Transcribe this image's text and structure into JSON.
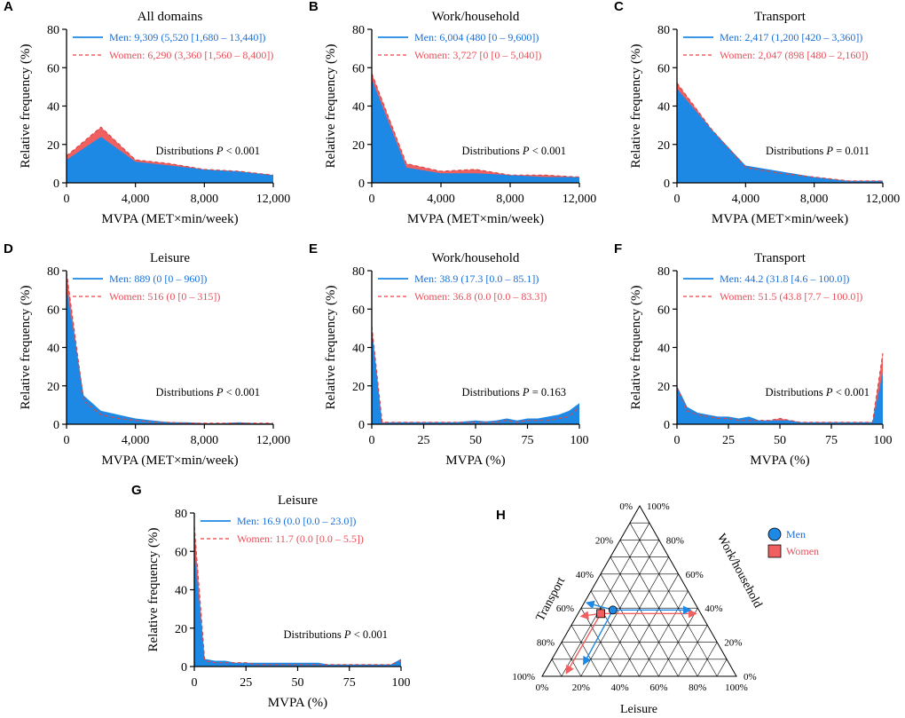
{
  "colors": {
    "men": "#1e88e5",
    "men_text": "#1a6fd9",
    "women": "#f06060",
    "women_text": "#e8505b"
  },
  "y_axis_label": "Relative frequency (%)",
  "chart_data": [
    {
      "letter": "A",
      "type": "area",
      "title": "All domains",
      "xlabel": "MVPA (MET×min/week)",
      "ylabel": "Relative frequency (%)",
      "xlim": [
        0,
        12000
      ],
      "ylim": [
        0,
        80
      ],
      "xticks": [
        0,
        4000,
        8000,
        12000
      ],
      "xtick_labels": [
        "0",
        "4,000",
        "8,000",
        "12,000"
      ],
      "yticks": [
        0,
        20,
        40,
        60,
        80
      ],
      "x": [
        0,
        2000,
        4000,
        6000,
        8000,
        10000,
        12000
      ],
      "series": [
        {
          "name": "Women",
          "values": [
            14,
            29,
            12,
            10,
            7,
            6,
            4
          ]
        },
        {
          "name": "Men",
          "values": [
            12,
            24,
            11,
            9,
            7,
            6,
            4
          ]
        }
      ],
      "legend": {
        "men": "Men: 9,309 (5,520 [1,680 – 13,440])",
        "women": "Women: 6,290 (3,360 [1,560 – 8,400])"
      },
      "annotation": {
        "prefix": "Distributions ",
        "p": "P",
        "suffix": " < 0.001"
      }
    },
    {
      "letter": "B",
      "type": "area",
      "title": "Work/household",
      "xlabel": "MVPA (MET×min/week)",
      "ylabel": "Relative frequency (%)",
      "xlim": [
        0,
        12000
      ],
      "ylim": [
        0,
        80
      ],
      "xticks": [
        0,
        4000,
        8000,
        12000
      ],
      "xtick_labels": [
        "0",
        "4,000",
        "8,000",
        "12,000"
      ],
      "yticks": [
        0,
        20,
        40,
        60,
        80
      ],
      "x": [
        0,
        2000,
        4000,
        6000,
        8000,
        10000,
        12000
      ],
      "series": [
        {
          "name": "Women",
          "values": [
            57,
            10,
            6,
            7,
            4,
            4,
            3
          ]
        },
        {
          "name": "Men",
          "values": [
            54,
            8,
            5,
            5,
            4,
            3,
            3
          ]
        }
      ],
      "legend": {
        "men": "Men: 6,004 (480 [0 – 9,600])",
        "women": "Women: 3,727 [0 [0 – 5,040])"
      },
      "annotation": {
        "prefix": "Distributions ",
        "p": "P",
        "suffix": " < 0.001"
      }
    },
    {
      "letter": "C",
      "type": "area",
      "title": "Transport",
      "xlabel": "MVPA (MET×min/week)",
      "ylabel": "Relative frequency (%)",
      "xlim": [
        0,
        12000
      ],
      "ylim": [
        0,
        80
      ],
      "xticks": [
        0,
        4000,
        8000,
        12000
      ],
      "xtick_labels": [
        "0",
        "4,000",
        "8,000",
        "12,000"
      ],
      "yticks": [
        0,
        20,
        40,
        60,
        80
      ],
      "x": [
        0,
        2000,
        4000,
        6000,
        8000,
        10000,
        12000
      ],
      "series": [
        {
          "name": "Women",
          "values": [
            52,
            28,
            8,
            5,
            3,
            1,
            1
          ]
        },
        {
          "name": "Men",
          "values": [
            49,
            28,
            9,
            6,
            3,
            1,
            1
          ]
        }
      ],
      "legend": {
        "men": "Men: 2,417 (1,200 [420 – 3,360])",
        "women": "Women: 2,047 (898 [480 – 2,160])"
      },
      "annotation": {
        "prefix": "Distributions ",
        "p": "P",
        "suffix": " = 0.011"
      }
    },
    {
      "letter": "D",
      "type": "area",
      "title": "Leisure",
      "xlabel": "MVPA (MET×min/week)",
      "ylabel": "Relative frequency (%)",
      "xlim": [
        0,
        12000
      ],
      "ylim": [
        0,
        80
      ],
      "xticks": [
        0,
        4000,
        8000,
        12000
      ],
      "xtick_labels": [
        "0",
        "4,000",
        "8,000",
        "12,000"
      ],
      "yticks": [
        0,
        20,
        40,
        60,
        80
      ],
      "x": [
        0,
        1000,
        2000,
        3000,
        4000,
        5000,
        6000,
        7000,
        8000,
        9000,
        10000,
        11000,
        12000
      ],
      "series": [
        {
          "name": "Women",
          "values": [
            79,
            12,
            5,
            3,
            2,
            1,
            1,
            0.5,
            0.5,
            0.5,
            0.5,
            0.5,
            0.5
          ]
        },
        {
          "name": "Men",
          "values": [
            71,
            15,
            7,
            5,
            3,
            2,
            1,
            1,
            0.5,
            0.5,
            1,
            0.5,
            0.5
          ]
        }
      ],
      "legend": {
        "men": "Men: 889 (0 [0 – 960])",
        "women": "Women: 516 (0 [0 – 315])"
      },
      "annotation": {
        "prefix": "Distributions ",
        "p": "P",
        "suffix": " < 0.001"
      }
    },
    {
      "letter": "E",
      "type": "area",
      "title": "Work/household",
      "xlabel": "MVPA (%)",
      "ylabel": "Relative frequency (%)",
      "xlim": [
        0,
        100
      ],
      "ylim": [
        0,
        80
      ],
      "xticks": [
        0,
        25,
        50,
        75,
        100
      ],
      "xtick_labels": [
        "0",
        "25",
        "50",
        "75",
        "100"
      ],
      "yticks": [
        0,
        20,
        40,
        60,
        80
      ],
      "x": [
        0,
        5,
        10,
        15,
        20,
        25,
        30,
        35,
        40,
        45,
        50,
        55,
        60,
        65,
        70,
        75,
        80,
        85,
        90,
        95,
        100
      ],
      "series": [
        {
          "name": "Women",
          "values": [
            51,
            1,
            1,
            1,
            1,
            1,
            1,
            1,
            1,
            1,
            1,
            1,
            1,
            2,
            1,
            2,
            2,
            2,
            3,
            4,
            9
          ]
        },
        {
          "name": "Men",
          "values": [
            50,
            0.5,
            1,
            1,
            1,
            1,
            1,
            1,
            1,
            1.5,
            2,
            1.5,
            2,
            3,
            2,
            3,
            3,
            4,
            5,
            7,
            11
          ]
        }
      ],
      "legend": {
        "men": "Men: 38.9 (17.3 [0.0 – 85.1])",
        "women": "Women: 36.8 (0.0 [0.0 – 83.3])"
      },
      "annotation": {
        "prefix": "Distributions ",
        "p": "P",
        "suffix": " = 0.163"
      }
    },
    {
      "letter": "F",
      "type": "area",
      "title": "Transport",
      "xlabel": "MVPA (%)",
      "ylabel": "Relative frequency (%)",
      "xlim": [
        0,
        100
      ],
      "ylim": [
        0,
        80
      ],
      "xticks": [
        0,
        25,
        50,
        75,
        100
      ],
      "xtick_labels": [
        "0",
        "25",
        "50",
        "75",
        "100"
      ],
      "yticks": [
        0,
        20,
        40,
        60,
        80
      ],
      "x": [
        0,
        5,
        10,
        15,
        20,
        25,
        30,
        35,
        40,
        45,
        50,
        55,
        60,
        65,
        70,
        75,
        80,
        85,
        90,
        95,
        100
      ],
      "series": [
        {
          "name": "Women",
          "values": [
            19,
            7,
            5,
            4,
            3,
            3,
            2,
            2,
            2,
            2,
            3,
            2,
            1,
            1,
            1,
            1,
            1,
            1,
            1,
            1,
            37
          ]
        },
        {
          "name": "Men",
          "values": [
            20,
            9,
            6,
            5,
            4,
            4,
            3,
            4,
            2,
            2,
            2,
            2,
            1,
            1,
            1,
            1,
            1,
            1,
            1,
            1,
            27
          ]
        }
      ],
      "legend": {
        "men": "Men: 44.2 (31.8 [4.6 – 100.0])",
        "women": "Women: 51.5 (43.8 [7.7 – 100.0])"
      },
      "annotation": {
        "prefix": "Distributions ",
        "p": "P",
        "suffix": " < 0.001"
      }
    },
    {
      "letter": "G",
      "type": "area",
      "title": "Leisure",
      "xlabel": "MVPA (%)",
      "ylabel": "Relative frequency (%)",
      "xlim": [
        0,
        100
      ],
      "ylim": [
        0,
        80
      ],
      "xticks": [
        0,
        25,
        50,
        75,
        100
      ],
      "xtick_labels": [
        "0",
        "25",
        "50",
        "75",
        "100"
      ],
      "yticks": [
        0,
        20,
        40,
        60,
        80
      ],
      "x": [
        0,
        5,
        10,
        15,
        20,
        25,
        30,
        35,
        40,
        45,
        50,
        55,
        60,
        65,
        70,
        75,
        80,
        85,
        90,
        95,
        100
      ],
      "series": [
        {
          "name": "Women",
          "values": [
            73,
            3,
            2,
            2,
            2,
            2,
            1,
            1,
            1,
            1,
            1,
            1,
            1,
            1,
            1,
            1,
            1,
            1,
            1,
            1,
            3
          ]
        },
        {
          "name": "Men",
          "values": [
            61,
            4,
            3,
            3,
            2,
            2,
            2,
            2,
            2,
            2,
            2,
            2,
            2,
            1,
            1,
            1,
            1,
            1,
            1,
            1,
            4
          ]
        }
      ],
      "legend": {
        "men": "Men: 16.9 (0.0 [0.0 – 23.0])",
        "women": "Women: 11.7 (0.0 [0.0 – 5.5])"
      },
      "annotation": {
        "prefix": "Distributions ",
        "p": "P",
        "suffix": " < 0.001"
      }
    },
    {
      "letter": "H",
      "type": "ternary",
      "axes": {
        "left": "Transport",
        "right": "Work/household",
        "bottom": "Leisure"
      },
      "tick_labels": [
        "0%",
        "20%",
        "40%",
        "60%",
        "80%",
        "100%"
      ],
      "ticks": [
        0,
        20,
        40,
        60,
        80,
        100
      ],
      "points": [
        {
          "name": "Men",
          "marker": "circle",
          "transport": 44.2,
          "work_household": 38.9,
          "leisure": 16.9
        },
        {
          "name": "Women",
          "marker": "square",
          "transport": 51.5,
          "work_household": 36.8,
          "leisure": 11.7
        }
      ]
    }
  ]
}
